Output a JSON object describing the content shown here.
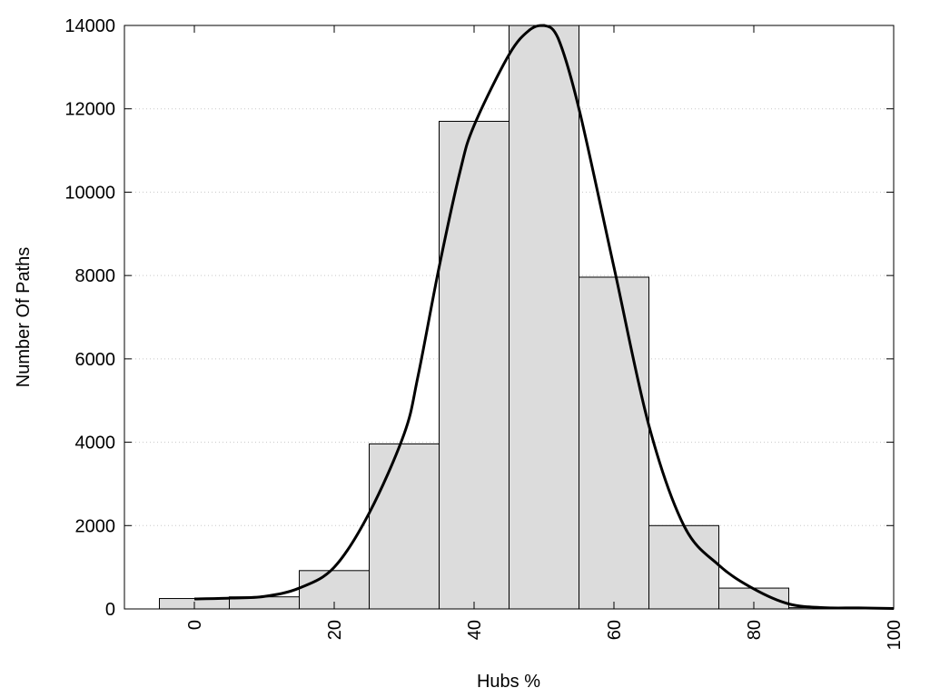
{
  "chart_data": {
    "type": "bar",
    "xlabel": "Hubs %",
    "ylabel": "Number Of Paths",
    "xlim": [
      -10,
      100
    ],
    "ylim": [
      0,
      14000
    ],
    "grid": "horizontal dotted",
    "x_ticks": [
      0,
      20,
      40,
      60,
      80,
      100
    ],
    "y_ticks": [
      0,
      2000,
      4000,
      6000,
      8000,
      10000,
      12000,
      14000
    ],
    "bin_width": 10,
    "bins": [
      {
        "center": 0,
        "value": 250
      },
      {
        "center": 10,
        "value": 290
      },
      {
        "center": 20,
        "value": 920
      },
      {
        "center": 30,
        "value": 3960
      },
      {
        "center": 40,
        "value": 11700
      },
      {
        "center": 50,
        "value": 14000
      },
      {
        "center": 60,
        "value": 7960
      },
      {
        "center": 70,
        "value": 2000
      },
      {
        "center": 80,
        "value": 500
      },
      {
        "center": 90,
        "value": 30
      },
      {
        "center": 100,
        "value": 20
      }
    ],
    "curve": {
      "type": "line",
      "x": [
        0,
        5,
        10,
        15,
        20,
        25,
        30,
        32,
        35,
        38,
        40,
        45,
        48,
        50,
        52,
        55,
        60,
        65,
        70,
        75,
        80,
        85,
        90,
        95,
        100
      ],
      "y": [
        240,
        260,
        300,
        500,
        1000,
        2300,
        4200,
        5600,
        8200,
        10500,
        11600,
        13300,
        13900,
        14000,
        13700,
        12000,
        8200,
        4400,
        2000,
        1050,
        480,
        120,
        30,
        25,
        10
      ]
    },
    "colors": {
      "bar_fill": "#dcdcdc",
      "bar_edge": "#000000",
      "curve": "#000000"
    }
  }
}
